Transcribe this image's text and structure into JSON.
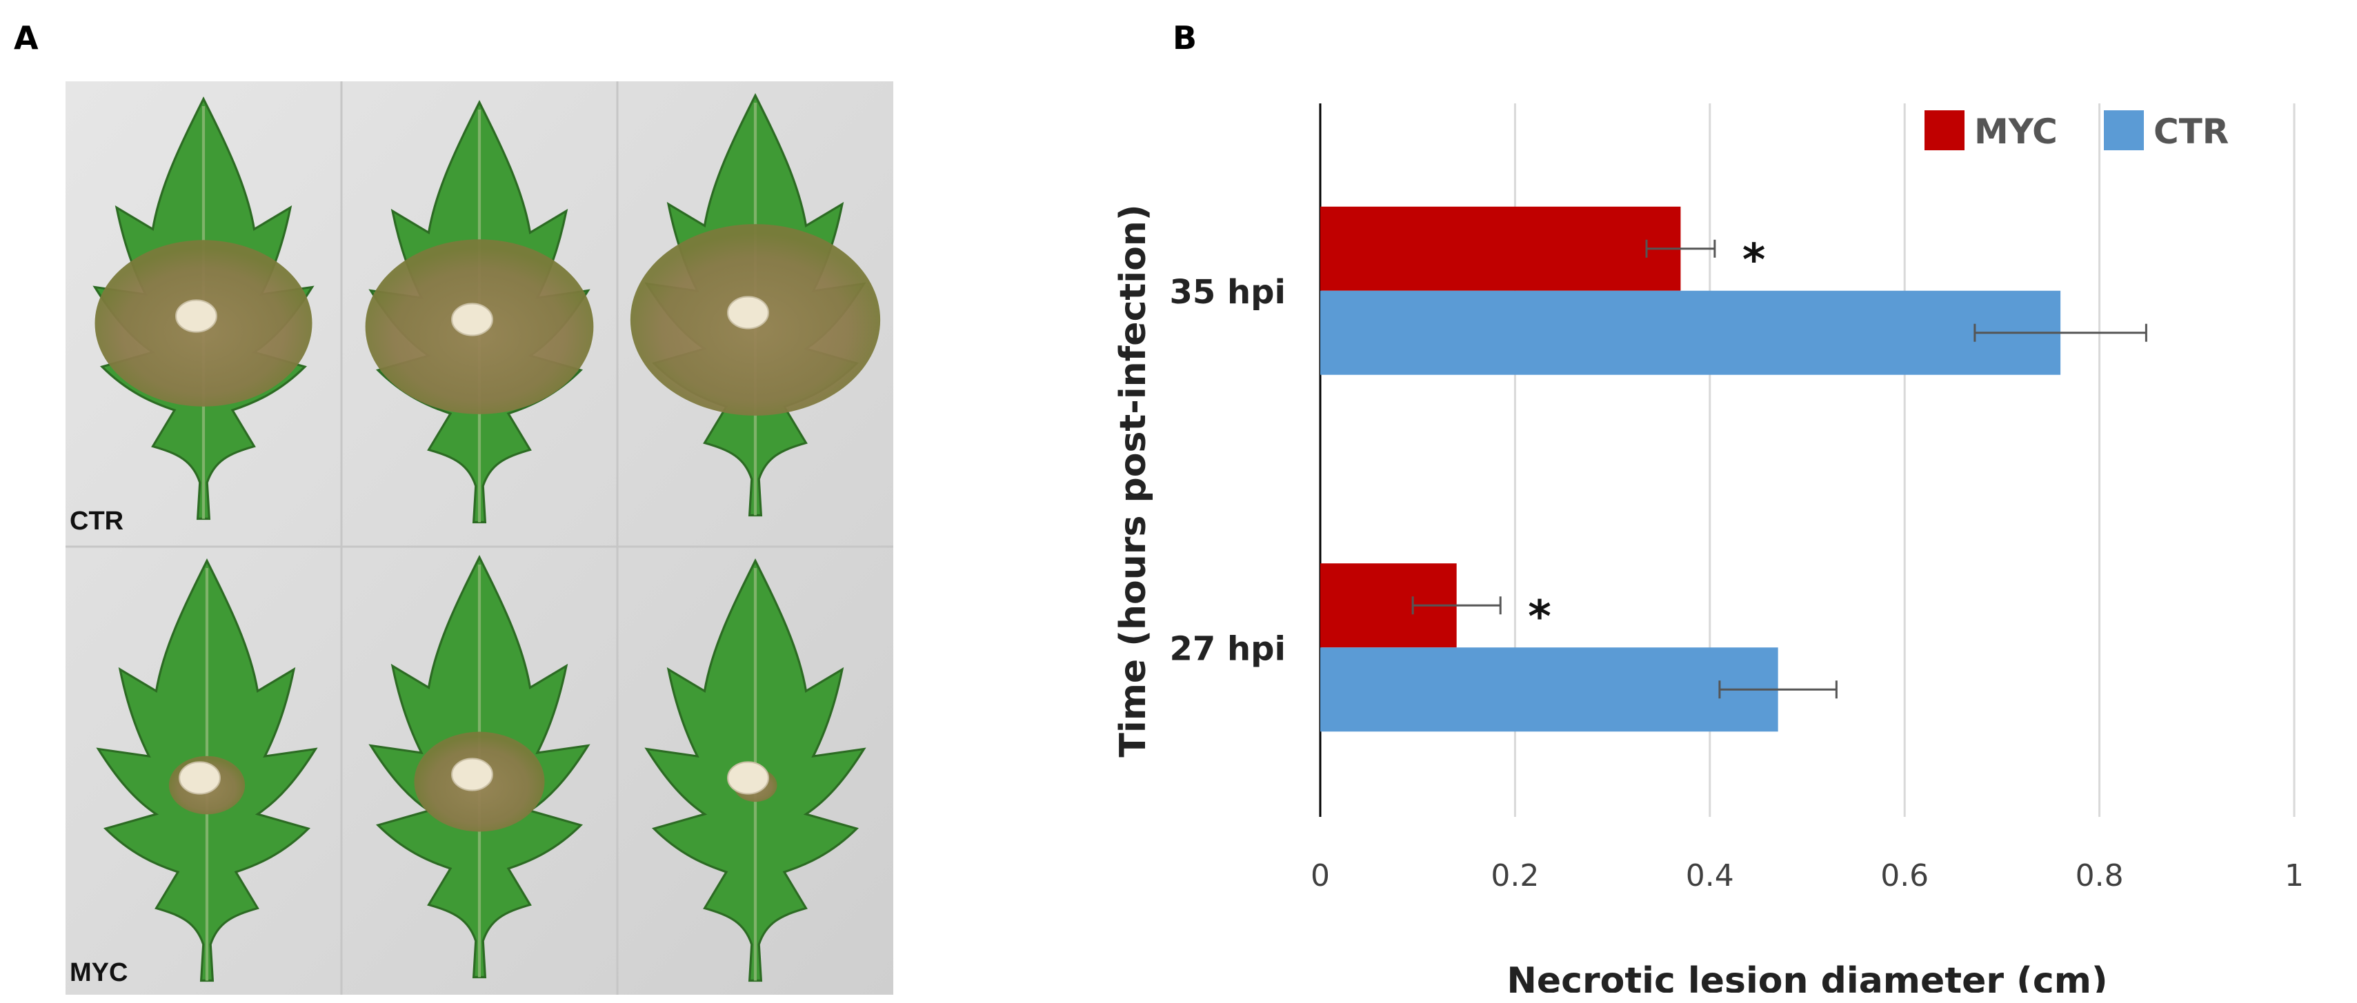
{
  "panels": {
    "a_label": "A",
    "b_label": "B"
  },
  "photo": {
    "top_group_label": "CTR",
    "bottom_group_label": "MYC"
  },
  "colors": {
    "myc": "#C00000",
    "ctr": "#5B9BD5",
    "leaf": "#3f9a35",
    "lesion": "#8b7a4a",
    "background": "#dcdcdc"
  },
  "chart_data": {
    "type": "bar",
    "orientation": "horizontal",
    "categories": [
      "35 hpi",
      "27 hpi"
    ],
    "series": [
      {
        "name": "MYC",
        "color": "#C00000",
        "values": [
          0.37,
          0.14
        ],
        "errors": [
          0.035,
          0.045
        ]
      },
      {
        "name": "CTR",
        "color": "#5B9BD5",
        "values": [
          0.76,
          0.47
        ],
        "errors": [
          0.088,
          0.06
        ]
      }
    ],
    "significance": [
      "*",
      "*"
    ],
    "xlabel": "Necrotic lesion diameter (cm)",
    "ylabel": "Time (hours post-infection)",
    "xlim": [
      0,
      1
    ],
    "xticks": [
      "0",
      "0.2",
      "0.4",
      "0.6",
      "0.8",
      "1"
    ],
    "grid": true,
    "legend_position": "top-right"
  }
}
